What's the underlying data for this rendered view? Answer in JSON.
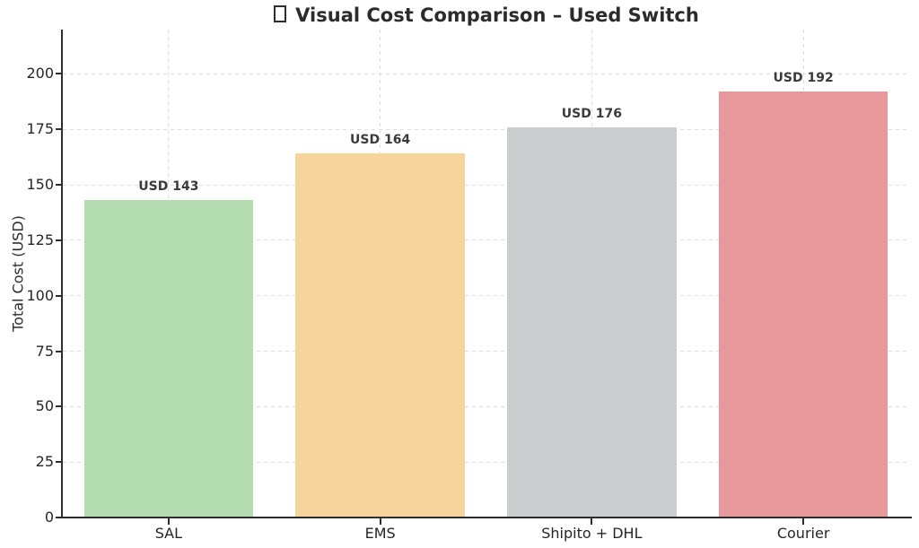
{
  "title": {
    "text": "Visual Cost Comparison – Used Switch",
    "missing_glyph_icon": "tofu-box (unrendered emoji before title)"
  },
  "chart_data": {
    "type": "bar",
    "title": "□ Visual Cost Comparison – Used Switch",
    "categories": [
      "SAL",
      "EMS",
      "Shipito + DHL",
      "Courier"
    ],
    "values": [
      143,
      164,
      176,
      192
    ],
    "bar_labels": [
      "USD 143",
      "USD 164",
      "USD 176",
      "USD 192"
    ],
    "bar_colors": [
      "#b3dcb0",
      "#f8d49d",
      "#c9cdcd",
      "#e6989a"
    ],
    "xlabel": "",
    "ylabel": "Total Cost (USD)",
    "ylim": [
      0,
      220
    ],
    "yticks": [
      0,
      25,
      50,
      75,
      100,
      125,
      150,
      175,
      200
    ],
    "grid": "dashed light-gray horizontal lines at y ticks and vertical lines at bar centers",
    "legend": "none",
    "spines": [
      "left",
      "bottom"
    ],
    "colors": {
      "axis": "#2e2e2e",
      "gridline": "#dedede",
      "title_text": "#2b2b2b",
      "tick_text": "#262626",
      "value_label_text": "#3a3a3a",
      "background": "#ffffff"
    }
  }
}
